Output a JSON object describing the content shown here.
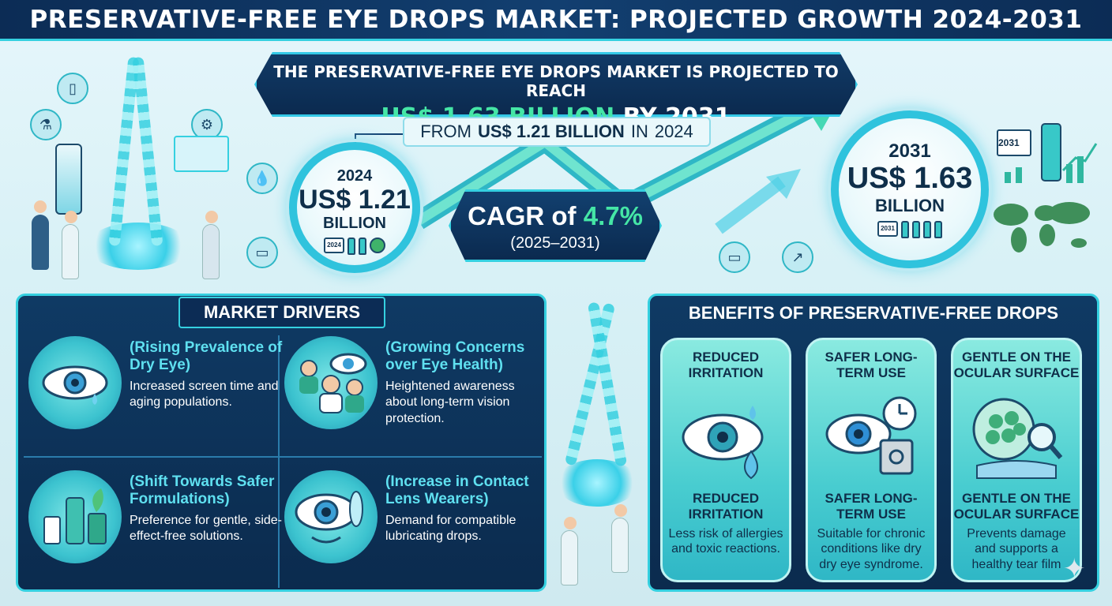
{
  "title": "PRESERVATIVE-FREE EYE DROPS MARKET: PROJECTED GROWTH 2024-2031",
  "headline": {
    "line1": "THE PRESERVATIVE-FREE EYE DROPS MARKET IS PROJECTED TO REACH",
    "value": "US$ 1.63 BILLION",
    "by": "BY",
    "year": "2031"
  },
  "from_line": {
    "prefix": "FROM",
    "value": "US$ 1.21 BILLION",
    "mid": "IN",
    "year": "2024"
  },
  "start": {
    "year": "2024",
    "value": "US$ 1.21",
    "unit": "BILLION",
    "icon_year": "2024"
  },
  "end": {
    "year": "2031",
    "value": "US$ 1.63",
    "unit": "BILLION",
    "icon_year": "2031",
    "side_icon_year": "2031"
  },
  "cagr": {
    "prefix": "CAGR of",
    "value": "4.7%",
    "period": "(2025–2031)"
  },
  "drivers": {
    "title": "MARKET DRIVERS",
    "items": [
      {
        "title": "(Rising Prevalence of Dry Eye)",
        "desc": "Increased screen time and aging populations.",
        "icon": "dry-eye-icon"
      },
      {
        "title": "(Growing Concerns over Eye Health)",
        "desc": "Heightened awareness about long-term vision protection.",
        "icon": "eye-health-icon"
      },
      {
        "title": "(Shift Towards Safer Formulations)",
        "desc": "Preference for gentle, side-effect-free solutions.",
        "icon": "formulations-icon"
      },
      {
        "title": "(Increase in Contact Lens Wearers)",
        "desc": "Demand for compatible lubricating drops.",
        "icon": "contact-lens-icon"
      }
    ]
  },
  "benefits": {
    "title": "BENEFITS OF PRESERVATIVE-FREE DROPS",
    "cards": [
      {
        "top": "REDUCED IRRITATION",
        "title": "REDUCED IRRITATION",
        "desc": "Less risk of allergies and toxic reactions.",
        "icon": "eye-drop-icon"
      },
      {
        "top": "SAFER LONG-TERM USE",
        "title": "SAFER LONG-TERM USE",
        "desc": "Suitable for chronic conditions like dry dry eye syndrome.",
        "icon": "eye-safe-clock-icon"
      },
      {
        "top": "GENTLE ON THE OCULAR SURFACE",
        "title": "GENTLE ON THE OCULAR SURFACE",
        "desc": "Prevents damage and supports a healthy tear film",
        "icon": "cells-magnifier-icon"
      }
    ]
  },
  "colors": {
    "navy": "#0c2c55",
    "cyan": "#35d0e0",
    "green_highlight": "#45e6a6",
    "driver_title": "#5fe0f0",
    "card_teal": "#49cdd0"
  }
}
